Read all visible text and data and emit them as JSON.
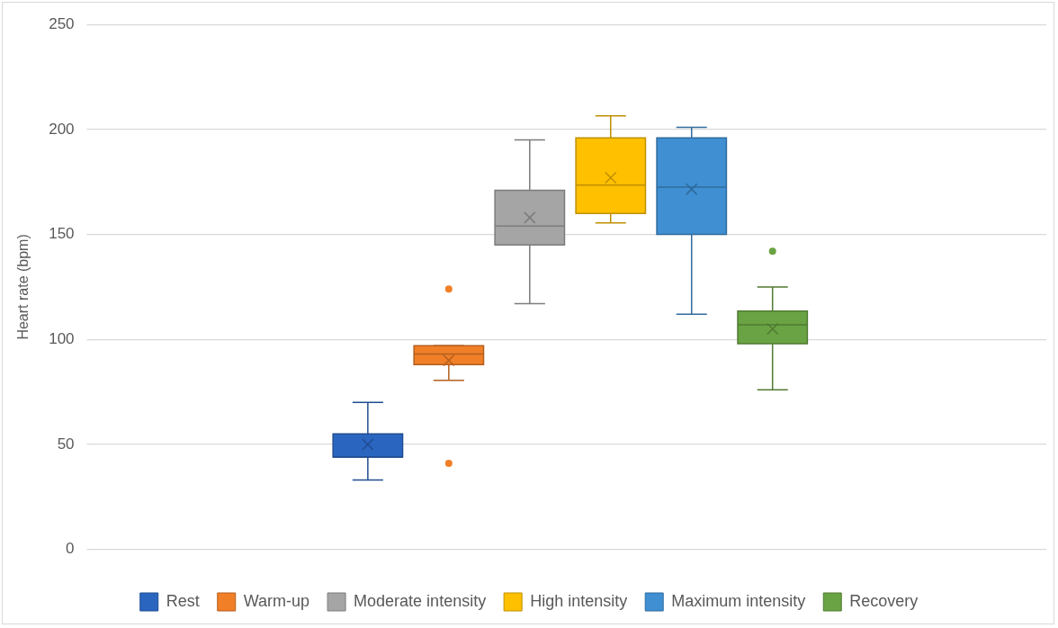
{
  "chart_data": {
    "type": "box",
    "ylabel": "Heart rate (bpm)",
    "categories": [
      null
    ],
    "ylim": [
      0,
      250
    ],
    "yticks": [
      0,
      50,
      100,
      150,
      200,
      250
    ],
    "grid": "y",
    "legend": "bottom",
    "series": [
      {
        "name": "Rest",
        "color": "#2a66c0",
        "boxes": [
          {
            "low": 33,
            "q1": 44,
            "median": 44,
            "q3": 55,
            "high": 70,
            "mean": 50
          }
        ]
      },
      {
        "name": "Warm-up",
        "color": "#f07f28",
        "boxes": [
          {
            "low": 80.5,
            "q1": 88,
            "median": 93,
            "q3": 97,
            "high": 97,
            "mean": 90,
            "outliers": [
              124,
              41
            ]
          }
        ]
      },
      {
        "name": "Moderate intensity",
        "color": "#a5a5a5",
        "boxes": [
          {
            "low": 117,
            "q1": 145,
            "median": 154,
            "q3": 171,
            "high": 195,
            "mean": 158
          }
        ]
      },
      {
        "name": "High intensity",
        "color": "#ffc000",
        "boxes": [
          {
            "low": 155.5,
            "q1": 160,
            "median": 173.5,
            "q3": 196,
            "high": 206.5,
            "mean": 177
          }
        ]
      },
      {
        "name": "Maximum intensity",
        "color": "#3f8fd2",
        "boxes": [
          {
            "low": 112,
            "q1": 150,
            "median": 172.5,
            "q3": 196,
            "high": 201,
            "mean": 171.5
          }
        ]
      },
      {
        "name": "Recovery",
        "color": "#6aa343",
        "boxes": [
          {
            "low": 76,
            "q1": 98,
            "median": 107,
            "q3": 113.5,
            "high": 125,
            "mean": 105,
            "outliers": [
              142
            ]
          }
        ]
      }
    ]
  }
}
